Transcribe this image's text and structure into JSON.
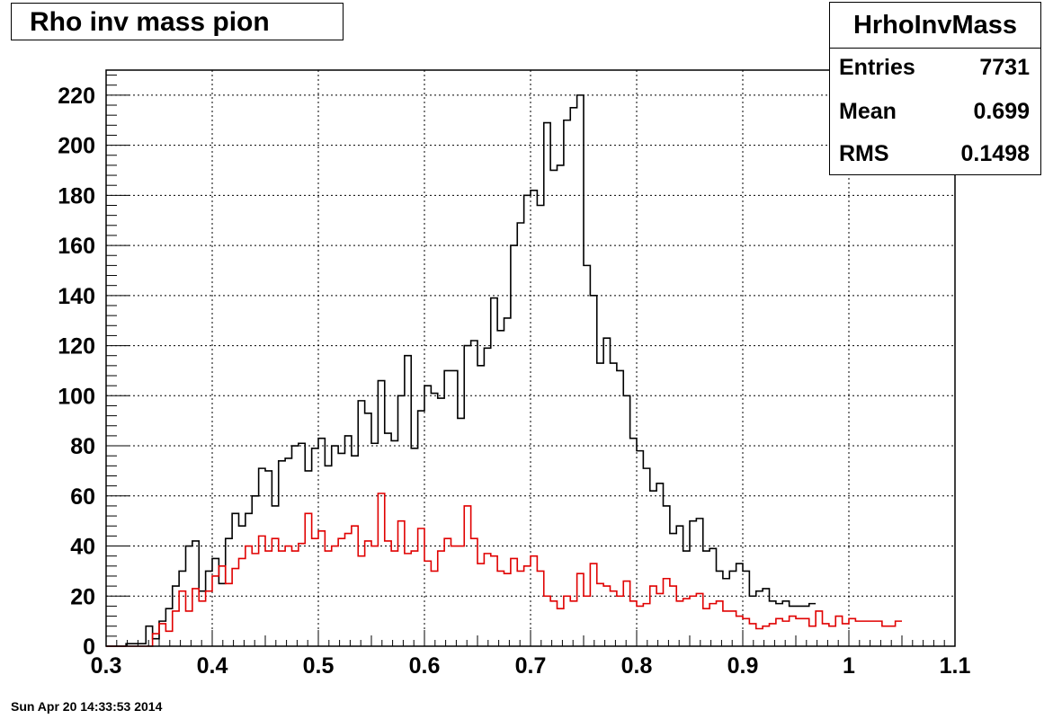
{
  "title": "Rho inv mass pion",
  "stats": {
    "name": "HrhoInvMass",
    "rows": [
      {
        "label": "Entries",
        "value": "7731"
      },
      {
        "label": "Mean",
        "value": "0.699"
      },
      {
        "label": "RMS",
        "value": "0.1498"
      }
    ]
  },
  "date_stamp": "Sun Apr 20 14:33:53 2014",
  "chart_data": {
    "type": "histogram",
    "title": "Rho inv mass pion",
    "xlabel": "",
    "ylabel": "",
    "xlim": [
      0.3,
      1.1
    ],
    "ylim": [
      0,
      230
    ],
    "grid": true,
    "legend": "none",
    "x_ticks": [
      "0.3",
      "0.4",
      "0.5",
      "0.6",
      "0.7",
      "0.8",
      "0.9",
      "1",
      "1.1"
    ],
    "y_ticks": [
      "0",
      "20",
      "40",
      "60",
      "80",
      "100",
      "120",
      "140",
      "160",
      "180",
      "200",
      "220"
    ],
    "bin_start": 0.3,
    "bin_width": 0.00625,
    "series": [
      {
        "color": "#000000",
        "values": [
          0,
          0,
          0,
          1,
          1,
          1,
          8,
          3,
          10,
          15,
          24,
          30,
          40,
          42,
          22,
          30,
          35,
          25,
          43,
          53,
          48,
          53,
          60,
          71,
          70,
          56,
          74,
          75,
          80,
          81,
          70,
          79,
          83,
          72,
          80,
          77,
          84,
          76,
          98,
          93,
          81,
          106,
          85,
          82,
          100,
          116,
          79,
          94,
          104,
          101,
          99,
          110,
          110,
          91,
          120,
          122,
          112,
          119,
          139,
          126,
          131,
          160,
          169,
          180,
          182,
          176,
          209,
          190,
          192,
          210,
          215,
          220,
          152,
          140,
          113,
          123,
          113,
          110,
          100,
          83,
          78,
          71,
          62,
          65,
          56,
          45,
          48,
          38,
          50,
          51,
          38,
          39,
          30,
          27,
          30,
          33,
          30,
          20,
          22,
          23,
          18,
          17,
          18,
          16,
          16,
          16,
          17
        ]
      },
      {
        "color": "#e00000",
        "values": [
          0,
          0,
          0,
          0,
          0,
          0,
          0,
          5,
          9,
          6,
          14,
          22,
          14,
          23,
          18,
          22,
          28,
          32,
          25,
          31,
          35,
          40,
          37,
          44,
          38,
          43,
          38,
          40,
          38,
          41,
          53,
          43,
          46,
          38,
          40,
          43,
          45,
          48,
          36,
          42,
          40,
          61,
          42,
          38,
          50,
          37,
          38,
          47,
          34,
          30,
          38,
          43,
          40,
          40,
          56,
          43,
          33,
          37,
          36,
          30,
          29,
          35,
          30,
          32,
          36,
          30,
          20,
          18,
          15,
          20,
          18,
          29,
          20,
          33,
          25,
          24,
          22,
          20,
          26,
          18,
          16,
          17,
          24,
          21,
          27,
          24,
          18,
          19,
          20,
          21,
          15,
          17,
          18,
          14,
          14,
          12,
          11,
          9,
          7,
          8,
          9,
          11,
          10,
          12,
          11,
          11,
          8,
          14,
          9,
          8,
          12,
          9,
          11,
          10,
          10,
          10,
          10,
          8,
          8,
          10
        ]
      }
    ]
  }
}
